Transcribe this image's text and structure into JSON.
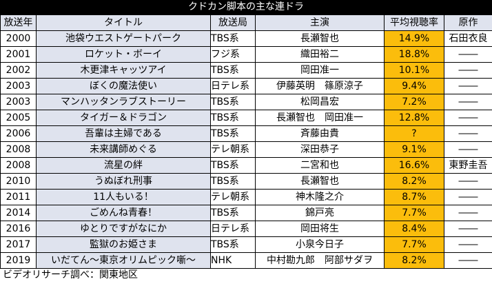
{
  "title": "クドカン脚本の主な連ドラ",
  "headers": {
    "year": "放送年",
    "title": "タイトル",
    "network": "放送局",
    "cast": "主演",
    "rating": "平均視聴率",
    "original": "原作"
  },
  "rows": [
    {
      "year": "2000",
      "title": "池袋ウエストゲートパーク",
      "network": "TBS系",
      "cast": "長瀬智也",
      "rating": "14.9%",
      "original": "石田衣良"
    },
    {
      "year": "2001",
      "title": "ロケット・ボーイ",
      "network": "フジ系",
      "cast": "織田裕二",
      "rating": "18.8%",
      "original": "――"
    },
    {
      "year": "2002",
      "title": "木更津キャッツアイ",
      "network": "TBS系",
      "cast": "岡田准一",
      "rating": "10.1%",
      "original": "――"
    },
    {
      "year": "2003",
      "title": "ぼくの魔法使い",
      "network": "日テレ系",
      "cast": "伊藤英明　篠原涼子",
      "rating": "9.4%",
      "original": "――"
    },
    {
      "year": "2003",
      "title": "マンハッタンラブストーリー",
      "network": "TBS系",
      "cast": "松岡昌宏",
      "rating": "7.2%",
      "original": "――"
    },
    {
      "year": "2005",
      "title": "タイガー＆ドラゴン",
      "network": "TBS系",
      "cast": "長瀬智也　岡田准一",
      "rating": "12.8%",
      "original": "――"
    },
    {
      "year": "2006",
      "title": "吾輩は主婦である",
      "network": "TBS系",
      "cast": "斉藤由貴",
      "rating": "?",
      "original": "――"
    },
    {
      "year": "2008",
      "title": "未来講師めぐる",
      "network": "テレ朝系",
      "cast": "深田恭子",
      "rating": "9.1%",
      "original": "――"
    },
    {
      "year": "2008",
      "title": "流星の絆",
      "network": "TBS系",
      "cast": "二宮和也",
      "rating": "16.6%",
      "original": "東野圭吾"
    },
    {
      "year": "2010",
      "title": "うぬぼれ刑事",
      "network": "TBS系",
      "cast": "長瀬智也",
      "rating": "8.2%",
      "original": "――"
    },
    {
      "year": "2011",
      "title": "11人もいる！",
      "network": "テレ朝系",
      "cast": "神木隆之介",
      "rating": "8.7%",
      "original": "――"
    },
    {
      "year": "2014",
      "title": "ごめんね青春！",
      "network": "TBS系",
      "cast": "錦戸亮",
      "rating": "7.7%",
      "original": "――"
    },
    {
      "year": "2016",
      "title": "ゆとりですがなにか",
      "network": "日テレ系",
      "cast": "岡田将生",
      "rating": "8.4%",
      "original": "――"
    },
    {
      "year": "2017",
      "title": "監獄のお姫さま",
      "network": "TBS系",
      "cast": "小泉今日子",
      "rating": "7.7%",
      "original": "――"
    },
    {
      "year": "2019",
      "title": "いだてん～東京オリムピック噺～",
      "network": "NHK",
      "cast": "中村勘九郎　阿部サダヲ",
      "rating": "8.2%",
      "original": "――"
    }
  ],
  "footer": "ビデオリサーチ調べ：関東地区"
}
